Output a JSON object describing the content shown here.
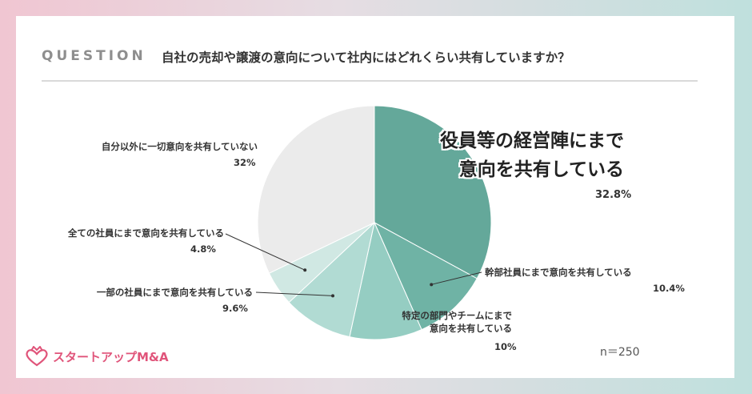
{
  "header": {
    "question_label": "QUESTION",
    "question_text": "自社の売却や譲渡の意向について社内にはどれくらい共有していますか？"
  },
  "footer": {
    "sample_size": "n＝250",
    "brand": "スタートアップM&A"
  },
  "chart_data": {
    "type": "pie",
    "start_angle_deg": 0,
    "direction": "clockwise",
    "slices": [
      {
        "label_lines": [
          "役員等の経営陣にまで",
          "意向を共有している"
        ],
        "value_label": "32.8%",
        "value": 32.8,
        "color": "#64a89a"
      },
      {
        "label_lines": [
          "幹部社員にまで意向を共有している"
        ],
        "value_label": "10.4%",
        "value": 10.4,
        "color": "#6fb3a5"
      },
      {
        "label_lines": [
          "特定の部門やチームにまで",
          "意向を共有している"
        ],
        "value_label": "10%",
        "value": 10,
        "color": "#95cdc2"
      },
      {
        "label_lines": [
          "一部の社員にまで意向を共有している"
        ],
        "value_label": "9.6%",
        "value": 9.6,
        "color": "#b1dbd3"
      },
      {
        "label_lines": [
          "全ての社員にまで意向を共有している"
        ],
        "value_label": "4.8%",
        "value": 4.8,
        "color": "#d0e8e3"
      },
      {
        "label_lines": [
          "自分以外に一切意向を共有していない"
        ],
        "value_label": "32%",
        "value": 32,
        "color": "#ebebeb"
      }
    ]
  }
}
